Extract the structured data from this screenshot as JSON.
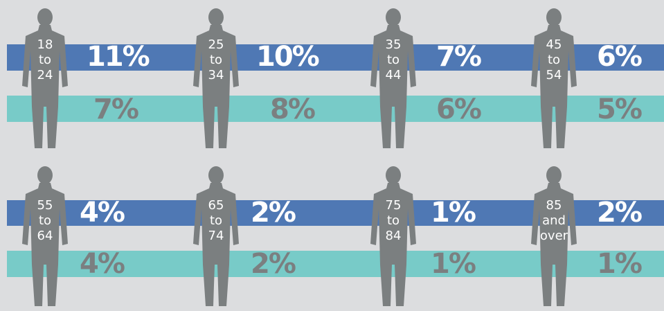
{
  "groups": [
    {
      "label": [
        "18",
        "to",
        "24"
      ],
      "primary": "11%",
      "secondary": "7%"
    },
    {
      "label": [
        "25",
        "to",
        "34"
      ],
      "primary": "10%",
      "secondary": "8%"
    },
    {
      "label": [
        "35",
        "to",
        "44"
      ],
      "primary": "7%",
      "secondary": "6%"
    },
    {
      "label": [
        "45",
        "to",
        "54"
      ],
      "primary": "6%",
      "secondary": "5%"
    },
    {
      "label": [
        "55",
        "to",
        "64"
      ],
      "primary": "4%",
      "secondary": "4%"
    },
    {
      "label": [
        "65",
        "to",
        "74"
      ],
      "primary": "2%",
      "secondary": "2%"
    },
    {
      "label": [
        "75",
        "to",
        "84"
      ],
      "primary": "1%",
      "secondary": "1%"
    },
    {
      "label": [
        "85",
        "and",
        "over"
      ],
      "primary": "2%",
      "secondary": "1%"
    }
  ]
}
